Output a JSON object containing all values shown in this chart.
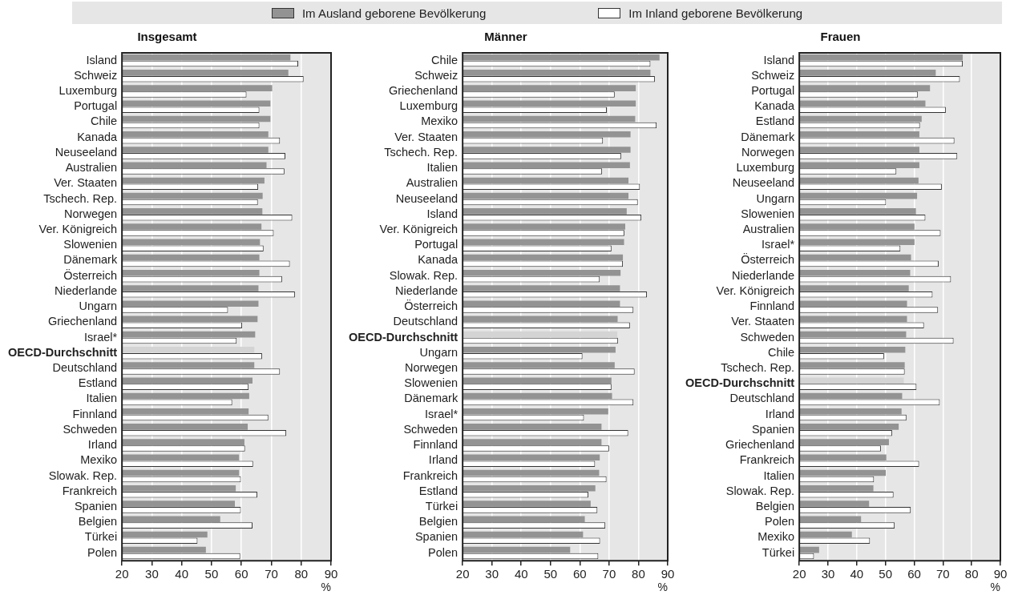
{
  "chart_data": [
    {
      "type": "bar",
      "orientation": "horizontal",
      "title": "Insgesamt",
      "xlabel": "%",
      "legend": "top",
      "grid": "x",
      "xlim": [
        20,
        90
      ],
      "xticks": [
        20,
        30,
        40,
        50,
        60,
        70,
        80,
        90
      ],
      "categories": [
        "Island",
        "Schweiz",
        "Luxemburg",
        "Portugal",
        "Chile",
        "Kanada",
        "Neuseeland",
        "Australien",
        "Ver. Staaten",
        "Tschech. Rep.",
        "Norwegen",
        "Ver. Königreich",
        "Slowenien",
        "Dänemark",
        "Österreich",
        "Niederlande",
        "Ungarn",
        "Griechenland",
        "Israel*",
        "OECD-Durchschnitt",
        "Deutschland",
        "Estland",
        "Italien",
        "Finnland",
        "Schweden",
        "Irland",
        "Mexiko",
        "Slowak. Rep.",
        "Frankreich",
        "Spanien",
        "Belgien",
        "Türkei",
        "Polen"
      ],
      "series": [
        {
          "name": "Im Ausland geborene Bevölkerung",
          "color": "#939393",
          "colors": [
            "#939393",
            "#939393",
            "#939393",
            "#939393",
            "#939393",
            "#939393",
            "#939393",
            "#939393",
            "#939393",
            "#939393",
            "#939393",
            "#939393",
            "#939393",
            "#939393",
            "#939393",
            "#939393",
            "#939393",
            "#939393",
            "#939393",
            "#d4d4d4",
            "#939393",
            "#939393",
            "#939393",
            "#939393",
            "#939393",
            "#939393",
            "#939393",
            "#939393",
            "#939393",
            "#939393",
            "#939393",
            "#939393",
            "#939393"
          ],
          "values": [
            76.4,
            75.7,
            70.3,
            69.7,
            69.7,
            69,
            69,
            68.4,
            67.7,
            67.1,
            67,
            66.7,
            66.2,
            66,
            66,
            65.7,
            65.7,
            65.4,
            64.6,
            64.3,
            64.3,
            63.7,
            62.6,
            62.4,
            62.1,
            61,
            59.2,
            59.2,
            58.1,
            57.8,
            52.9,
            48.6,
            48.1
          ]
        },
        {
          "name": "Im Inland geborene Bevölkerung",
          "color": "#ffffff",
          "values": [
            79,
            80.8,
            61.7,
            66,
            66,
            72.9,
            74.7,
            74.4,
            65.6,
            65.5,
            77,
            70.8,
            67.4,
            76.2,
            73.6,
            77.9,
            55.5,
            60.2,
            58.4,
            66.9,
            72.9,
            62.4,
            56.9,
            69,
            75,
            61.2,
            63.9,
            59.8,
            65.3,
            59.8,
            63.7,
            45.3,
            59.6
          ]
        }
      ]
    },
    {
      "type": "bar",
      "orientation": "horizontal",
      "title": "Männer",
      "xlabel": "%",
      "grid": "x",
      "xlim": [
        20,
        90
      ],
      "xticks": [
        20,
        30,
        40,
        50,
        60,
        70,
        80,
        90
      ],
      "categories": [
        "Chile",
        "Schweiz",
        "Griechenland",
        "Luxemburg",
        "Mexiko",
        "Ver. Staaten",
        "Tschech. Rep.",
        "Italien",
        "Australien",
        "Neuseeland",
        "Island",
        "Ver. Königreich",
        "Portugal",
        "Kanada",
        "Slowak. Rep.",
        "Niederlande",
        "Österreich",
        "Deutschland",
        "OECD-Durchschnitt",
        "Ungarn",
        "Norwegen",
        "Slowenien",
        "Dänemark",
        "Israel*",
        "Schweden",
        "Finnland",
        "Irland",
        "Frankreich",
        "Estland",
        "Türkei",
        "Belgien",
        "Spanien",
        "Polen"
      ],
      "series": [
        {
          "color": "#939393",
          "colors": [
            "#939393",
            "#939393",
            "#939393",
            "#939393",
            "#939393",
            "#939393",
            "#939393",
            "#939393",
            "#939393",
            "#939393",
            "#939393",
            "#939393",
            "#939393",
            "#939393",
            "#939393",
            "#939393",
            "#939393",
            "#939393",
            "#d4d4d4",
            "#939393",
            "#939393",
            "#939393",
            "#939393",
            "#939393",
            "#939393",
            "#939393",
            "#939393",
            "#939393",
            "#939393",
            "#939393",
            "#939393",
            "#939393",
            "#939393"
          ],
          "values": [
            87.2,
            84.1,
            79.1,
            79.1,
            78.9,
            77.3,
            77.3,
            77.1,
            76.6,
            76.6,
            76,
            75.5,
            75.1,
            74.7,
            73.9,
            73.7,
            73.7,
            72.9,
            72.8,
            72.2,
            71.9,
            70.8,
            71,
            69.7,
            67.4,
            67.4,
            66.8,
            66.6,
            65.3,
            63.7,
            61.7,
            61.1,
            56.7
          ]
        },
        {
          "color": "#ffffff",
          "values": [
            84.1,
            85.6,
            71.9,
            69.2,
            86.2,
            67.9,
            74.1,
            67.6,
            80.5,
            79.8,
            81,
            75.2,
            70.8,
            74.7,
            66.8,
            82.9,
            78.3,
            77.1,
            73,
            60.9,
            78.7,
            70.8,
            78.3,
            61.4,
            76.5,
            70,
            65.2,
            69.1,
            62.9,
            66,
            68.7,
            66.9,
            66.3
          ]
        }
      ]
    },
    {
      "type": "bar",
      "orientation": "horizontal",
      "title": "Frauen",
      "xlabel": "%",
      "grid": "x",
      "xlim": [
        20,
        90
      ],
      "xticks": [
        20,
        30,
        40,
        50,
        60,
        70,
        80,
        90
      ],
      "categories": [
        "Island",
        "Schweiz",
        "Portugal",
        "Kanada",
        "Estland",
        "Dänemark",
        "Norwegen",
        "Luxemburg",
        "Neuseeland",
        "Ungarn",
        "Slowenien",
        "Australien",
        "Israel*",
        "Österreich",
        "Niederlande",
        "Ver. Königreich",
        "Finnland",
        "Ver. Staaten",
        "Schweden",
        "Chile",
        "Tschech. Rep.",
        "OECD-Durchschnitt",
        "Deutschland",
        "Irland",
        "Spanien",
        "Griechenland",
        "Frankreich",
        "Italien",
        "Slowak. Rep.",
        "Belgien",
        "Polen",
        "Mexiko",
        "Türkei"
      ],
      "series": [
        {
          "color": "#939393",
          "colors": [
            "#939393",
            "#939393",
            "#939393",
            "#939393",
            "#939393",
            "#939393",
            "#939393",
            "#939393",
            "#939393",
            "#939393",
            "#939393",
            "#939393",
            "#939393",
            "#939393",
            "#939393",
            "#939393",
            "#939393",
            "#939393",
            "#939393",
            "#939393",
            "#939393",
            "#d4d4d4",
            "#939393",
            "#939393",
            "#939393",
            "#939393",
            "#939393",
            "#939393",
            "#939393",
            "#939393",
            "#939393",
            "#939393",
            "#939393"
          ],
          "values": [
            76.9,
            67.5,
            65.5,
            63.9,
            62.6,
            61.8,
            61.8,
            61.8,
            61.5,
            61,
            60.6,
            60.1,
            60.1,
            58.9,
            58.6,
            58.1,
            57.5,
            57.5,
            57.2,
            56.9,
            56.7,
            56.4,
            55.8,
            55.6,
            54.6,
            51.2,
            50.3,
            50.1,
            45.8,
            44.3,
            41.5,
            38.3,
            26.9
          ]
        },
        {
          "color": "#ffffff",
          "values": [
            76.9,
            75.9,
            61.3,
            71,
            62,
            74,
            75,
            53.8,
            69.6,
            50.2,
            63.9,
            69.2,
            55.2,
            68.5,
            72.8,
            66.4,
            68.3,
            63.4,
            73.7,
            49.5,
            56.7,
            60.8,
            68.9,
            57.3,
            52.3,
            48.4,
            61.7,
            46,
            52.8,
            58.8,
            53.2,
            44.6,
            25.1
          ]
        }
      ]
    }
  ]
}
